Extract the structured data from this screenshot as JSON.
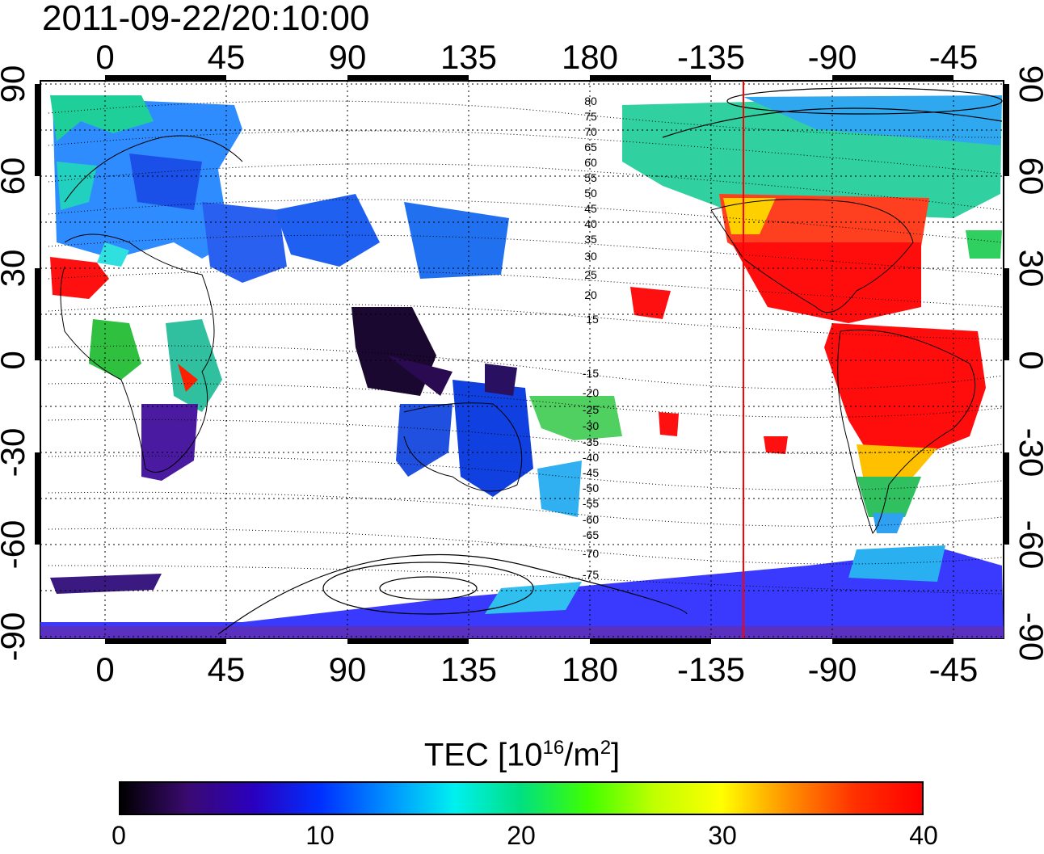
{
  "timestamp": "2011-09-22/20:10:00",
  "colorbar": {
    "title_prefix": "TEC  [10",
    "title_exp1": "16",
    "title_mid": "/m",
    "title_exp2": "2",
    "title_suffix": "]",
    "min": 0,
    "max": 40,
    "ticks": [
      "0",
      "10",
      "20",
      "30",
      "40"
    ],
    "colors": [
      "#000000",
      "#3a0a70",
      "#2a00c0",
      "#0030ff",
      "#0090ff",
      "#00f0f0",
      "#00e080",
      "#40ff00",
      "#c0ff00",
      "#ffff00",
      "#ff9000",
      "#ff3000",
      "#ff0000"
    ]
  },
  "map": {
    "lon_tick_labels": [
      "0",
      "45",
      "90",
      "135",
      "180",
      "-135",
      "-90",
      "-45"
    ],
    "lat_tick_labels": [
      "90",
      "60",
      "30",
      "0",
      "-30",
      "-60",
      "-90"
    ],
    "contour_labels_north": [
      "80",
      "75",
      "70",
      "65",
      "60",
      "55",
      "50",
      "45",
      "40",
      "35",
      "30",
      "25",
      "20",
      "15"
    ],
    "contour_labels_south": [
      "-15",
      "-20",
      "-25",
      "-30",
      "-35",
      "-40",
      "-45",
      "-50",
      "-55",
      "-60",
      "-65",
      "-70",
      "-75"
    ],
    "terminator_color": "#ff0000",
    "terminator_lon": -120
  }
}
